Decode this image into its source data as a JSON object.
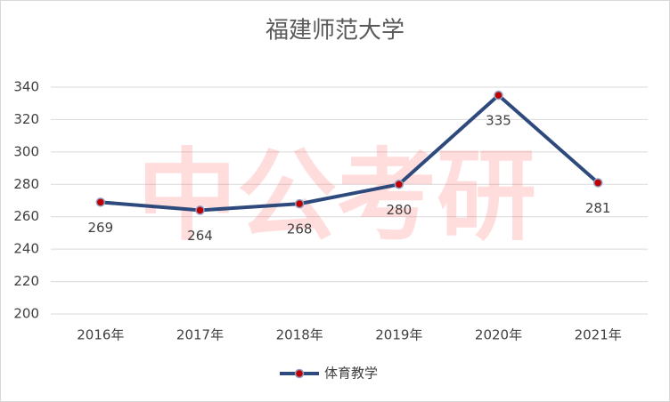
{
  "chart_data": {
    "type": "line",
    "title": "福建师范大学",
    "watermark": "中公考研",
    "categories": [
      "2016年",
      "2017年",
      "2018年",
      "2019年",
      "2020年",
      "2021年"
    ],
    "series": [
      {
        "name": "体育教学",
        "color": "#2e4a7d",
        "marker_color": "#c00000",
        "values": [
          269,
          264,
          268,
          280,
          335,
          281
        ]
      }
    ],
    "ylim": [
      200,
      340
    ],
    "yticks": [
      200,
      220,
      240,
      260,
      280,
      300,
      320,
      340
    ],
    "grid": true,
    "legend": "bottom"
  }
}
